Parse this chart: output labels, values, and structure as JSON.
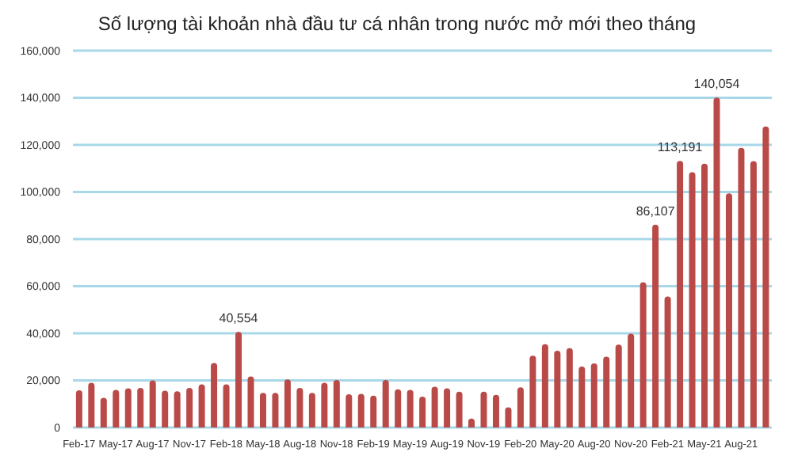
{
  "chart_data": {
    "type": "bar",
    "title": "Số lượng tài khoản nhà đầu tư cá nhân trong nước mở mới theo tháng",
    "categories": [
      "Feb-17",
      null,
      null,
      "May-17",
      null,
      null,
      "Aug-17",
      null,
      null,
      "Nov-17",
      null,
      null,
      "Feb-18",
      null,
      null,
      "May-18",
      null,
      null,
      "Aug-18",
      null,
      null,
      "Nov-18",
      null,
      null,
      "Feb-19",
      null,
      null,
      "May-19",
      null,
      null,
      "Aug-19",
      null,
      null,
      "Nov-19",
      null,
      null,
      "Feb-20",
      null,
      null,
      "May-20",
      null,
      null,
      "Aug-20",
      null,
      null,
      "Nov-20",
      null,
      null,
      "Feb-21",
      null,
      null,
      "May-21",
      null,
      null,
      "Aug-21",
      null,
      null
    ],
    "values": [
      15800,
      19000,
      12600,
      16000,
      16600,
      16800,
      20000,
      15600,
      15400,
      16800,
      18300,
      27400,
      18300,
      40554,
      21700,
      14700,
      14700,
      20400,
      16800,
      14700,
      19000,
      20200,
      14100,
      14300,
      13500,
      20200,
      16200,
      16000,
      13100,
      17300,
      16600,
      15200,
      3800,
      15200,
      13900,
      8600,
      17100,
      30500,
      35400,
      32600,
      33700,
      25900,
      27200,
      30100,
      35200,
      39800,
      61700,
      86107,
      55600,
      113191,
      108400,
      112000,
      140054,
      99400,
      118700,
      113100,
      127800
    ],
    "value_labels": [
      null,
      null,
      null,
      null,
      null,
      null,
      null,
      null,
      null,
      null,
      null,
      null,
      null,
      "40,554",
      null,
      null,
      null,
      null,
      null,
      null,
      null,
      null,
      null,
      null,
      null,
      null,
      null,
      null,
      null,
      null,
      null,
      null,
      null,
      null,
      null,
      null,
      null,
      null,
      null,
      null,
      null,
      null,
      null,
      null,
      null,
      null,
      null,
      "86,107",
      null,
      "113,191",
      null,
      null,
      "140,054",
      null,
      null,
      null,
      null
    ],
    "color": "#b94a48",
    "ylim": [
      0,
      160000
    ],
    "yticks": [
      0,
      {
        "value": 20000,
        "label": "20,000"
      },
      {
        "value": 40000,
        "label": "40,000"
      },
      {
        "value": 60000,
        "label": "60,000"
      },
      {
        "value": 80000,
        "label": "80,000"
      },
      {
        "value": 100000,
        "label": "100,000"
      },
      {
        "value": 120000,
        "label": "120,000"
      },
      {
        "value": 140000,
        "label": "140,000"
      },
      {
        "value": 160000,
        "label": "160,000"
      }
    ],
    "grid": "y"
  }
}
